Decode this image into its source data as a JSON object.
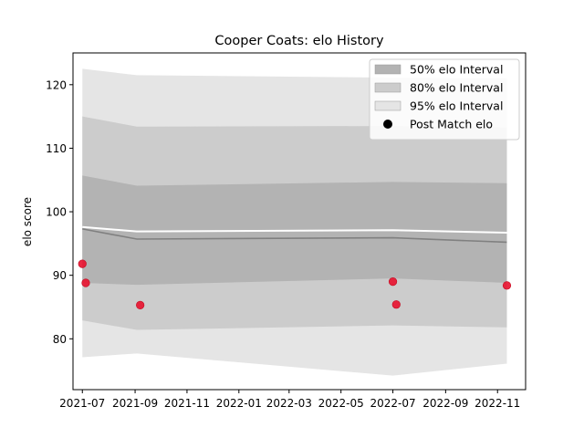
{
  "chart_data": {
    "type": "area",
    "title": "Cooper Coats: elo History",
    "xlabel": "",
    "ylabel": "elo score",
    "x_ticks": [
      "2021-07",
      "2021-09",
      "2021-11",
      "2022-01",
      "2022-03",
      "2022-05",
      "2022-07",
      "2022-09",
      "2022-11"
    ],
    "y_ticks": [
      80,
      90,
      100,
      110,
      120
    ],
    "ylim": [
      72,
      125
    ],
    "xlim": [
      "2021-06-20",
      "2022-12-04"
    ],
    "grid": false,
    "legend_position": "top-right",
    "dates": [
      "2021-07-01",
      "2021-09-03",
      "2022-07-01",
      "2022-11-12"
    ],
    "pre_match_elo": [
      97.6,
      96.9,
      97.1,
      96.7
    ],
    "mean_elo": [
      97.3,
      95.7,
      95.9,
      95.2
    ],
    "bands": [
      {
        "name": "95% elo Interval",
        "color": "#e5e5e5",
        "lower": [
          77.1,
          77.7,
          74.2,
          76.1
        ],
        "upper": [
          122.5,
          121.5,
          121.1,
          121.0
        ]
      },
      {
        "name": "80% elo Interval",
        "color": "#cccccc",
        "lower": [
          82.9,
          81.4,
          82.1,
          81.8
        ],
        "upper": [
          115.0,
          113.4,
          113.5,
          113.3
        ]
      },
      {
        "name": "50% elo Interval",
        "color": "#b3b3b3",
        "lower": [
          88.8,
          88.5,
          89.5,
          88.8
        ],
        "upper": [
          105.7,
          104.1,
          104.7,
          104.5
        ]
      }
    ],
    "post_match": {
      "name": "Post Match elo",
      "color": "#e8112d",
      "points": [
        {
          "date": "2021-07-01",
          "elo": 91.8
        },
        {
          "date": "2021-07-05",
          "elo": 88.8
        },
        {
          "date": "2021-09-07",
          "elo": 85.3
        },
        {
          "date": "2022-07-01",
          "elo": 89.0
        },
        {
          "date": "2022-07-05",
          "elo": 85.4
        },
        {
          "date": "2022-11-12",
          "elo": 88.4
        }
      ]
    },
    "legend": [
      {
        "label": "50% elo Interval",
        "kind": "patch",
        "color": "#b3b3b3"
      },
      {
        "label": "80% elo Interval",
        "kind": "patch",
        "color": "#cccccc"
      },
      {
        "label": "95% elo Interval",
        "kind": "patch",
        "color": "#e5e5e5"
      },
      {
        "label": "Post Match elo",
        "kind": "marker",
        "color": "#000000"
      }
    ]
  }
}
